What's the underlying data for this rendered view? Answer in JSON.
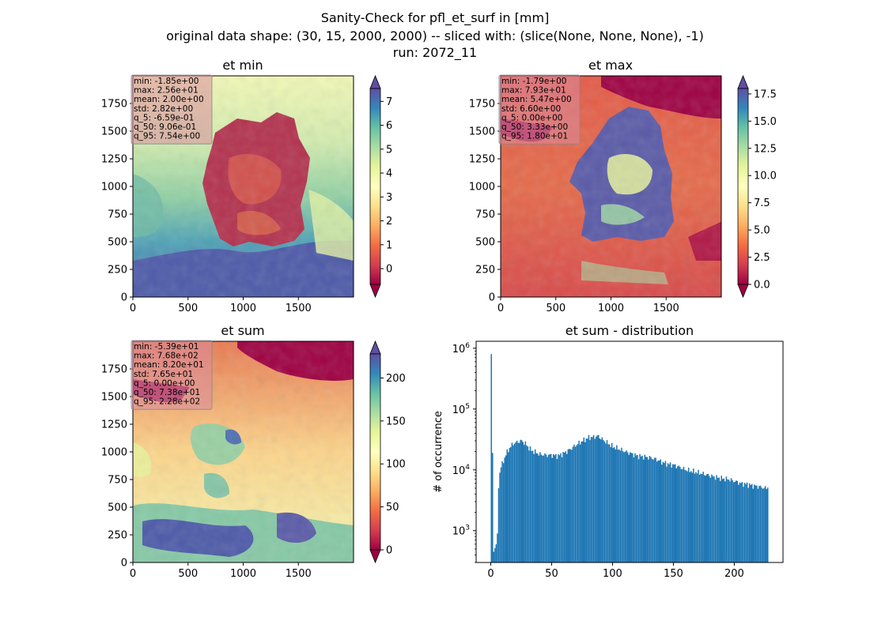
{
  "suptitle": {
    "line1": "Sanity-Check for pfl_et_surf in [mm]",
    "line2": "original data shape: (30, 15, 2000, 2000) -- sliced with: (slice(None, None, None), -1)",
    "line3": "run: 2072_11"
  },
  "panels": {
    "et_min": {
      "title": "et min",
      "stats": [
        "min: -1.85e+00",
        "max: 2.56e+01",
        "mean: 2.00e+00",
        "std: 2.82e+00",
        "q_5: -6.59e-01",
        "q_50: 9.06e-01",
        "q_95: 7.54e+00"
      ],
      "x_ticks": [
        "0",
        "500",
        "1000",
        "1500"
      ],
      "y_ticks": [
        "0",
        "250",
        "500",
        "750",
        "1000",
        "1250",
        "1500",
        "1750"
      ],
      "colorbar": {
        "ticks": [
          "0",
          "1",
          "2",
          "3",
          "4",
          "5",
          "6",
          "7"
        ],
        "tick_values": [
          0,
          1,
          2,
          3,
          4,
          5,
          6,
          7
        ],
        "range": [
          -0.66,
          7.54
        ],
        "extend": "both"
      }
    },
    "et_max": {
      "title": "et max",
      "stats": [
        "min: -1.79e+00",
        "max: 7.93e+01",
        "mean: 5.47e+00",
        "std: 6.60e+00",
        "q_5: 0.00e+00",
        "q_50: 3.33e+00",
        "q_95: 1.80e+01"
      ],
      "x_ticks": [
        "0",
        "500",
        "1000",
        "1500"
      ],
      "y_ticks": [
        "0",
        "250",
        "500",
        "750",
        "1000",
        "1250",
        "1500",
        "1750"
      ],
      "colorbar": {
        "ticks": [
          "0.0",
          "2.5",
          "5.0",
          "7.5",
          "10.0",
          "12.5",
          "15.0",
          "17.5"
        ],
        "tick_values": [
          0,
          2.5,
          5,
          7.5,
          10,
          12.5,
          15,
          17.5
        ],
        "range": [
          0,
          18.0
        ],
        "extend": "both"
      }
    },
    "et_sum": {
      "title": "et sum",
      "stats": [
        "min: -5.39e+01",
        "max: 7.68e+02",
        "mean: 8.20e+01",
        "std: 7.65e+01",
        "q_5: 0.00e+00",
        "q_50: 7.38e+01",
        "q_95: 2.28e+02"
      ],
      "x_ticks": [
        "0",
        "500",
        "1000",
        "1500"
      ],
      "y_ticks": [
        "0",
        "250",
        "500",
        "750",
        "1000",
        "1250",
        "1500",
        "1750"
      ],
      "colorbar": {
        "ticks": [
          "0",
          "50",
          "100",
          "150",
          "200"
        ],
        "tick_values": [
          0,
          50,
          100,
          150,
          200
        ],
        "range": [
          0,
          228
        ],
        "extend": "both"
      }
    },
    "histogram": {
      "title": "et sum - distribution",
      "ylabel": "# of occurrence",
      "x_ticks": [
        "0",
        "50",
        "100",
        "150",
        "200"
      ],
      "y_ticks": [
        {
          "base": "10",
          "exp": "3"
        },
        {
          "base": "10",
          "exp": "4"
        },
        {
          "base": "10",
          "exp": "5"
        },
        {
          "base": "10",
          "exp": "6"
        }
      ]
    }
  },
  "colors": {
    "bar": "#1f77b4",
    "stats_box": "#d98ca0"
  },
  "chart_data": [
    {
      "type": "heatmap",
      "title": "et min",
      "xlim": [
        0,
        2000
      ],
      "ylim": [
        0,
        2000
      ],
      "colormap": "Spectral",
      "clim": [
        -0.66,
        7.54
      ],
      "summary": {
        "min": -1.85,
        "max": 25.6,
        "mean": 2.0,
        "std": 2.82,
        "q_5": -0.659,
        "q_50": 0.906,
        "q_95": 7.54
      }
    },
    {
      "type": "heatmap",
      "title": "et max",
      "xlim": [
        0,
        2000
      ],
      "ylim": [
        0,
        2000
      ],
      "colormap": "Spectral",
      "clim": [
        0,
        18.0
      ],
      "summary": {
        "min": -1.79,
        "max": 79.3,
        "mean": 5.47,
        "std": 6.6,
        "q_5": 0.0,
        "q_50": 3.33,
        "q_95": 18.0
      }
    },
    {
      "type": "heatmap",
      "title": "et sum",
      "xlim": [
        0,
        2000
      ],
      "ylim": [
        0,
        2000
      ],
      "colormap": "Spectral",
      "clim": [
        0,
        228
      ],
      "summary": {
        "min": -53.9,
        "max": 768,
        "mean": 82.0,
        "std": 76.5,
        "q_5": 0.0,
        "q_50": 73.8,
        "q_95": 228
      }
    },
    {
      "type": "bar",
      "title": "et sum - distribution",
      "xlabel": "",
      "ylabel": "# of occurrence",
      "xlim": [
        -12,
        240
      ],
      "ylim": [
        300,
        1300000
      ],
      "yscale": "log",
      "bin_width": 1,
      "x": [
        0,
        2,
        4,
        5,
        6,
        7,
        8,
        10,
        12,
        15,
        18,
        20,
        22,
        25,
        28,
        30,
        33,
        35,
        40,
        45,
        50,
        55,
        60,
        65,
        70,
        75,
        80,
        85,
        88,
        90,
        95,
        100,
        105,
        110,
        115,
        120,
        125,
        130,
        135,
        140,
        145,
        150,
        155,
        160,
        165,
        170,
        175,
        180,
        185,
        190,
        195,
        200,
        205,
        210,
        215,
        220,
        225,
        227
      ],
      "values": [
        800000,
        450,
        600,
        900,
        5000,
        9000,
        11000,
        14000,
        18000,
        23000,
        27000,
        28000,
        29000,
        30000,
        27000,
        24000,
        21000,
        20000,
        18000,
        17500,
        17500,
        17000,
        19000,
        22000,
        26000,
        30000,
        34000,
        35000,
        36000,
        33000,
        28000,
        24000,
        22000,
        20000,
        18500,
        17000,
        16500,
        16000,
        15000,
        13500,
        12500,
        12000,
        11000,
        10000,
        9500,
        9000,
        8500,
        8000,
        7500,
        7200,
        7000,
        6500,
        6000,
        5800,
        5500,
        5300,
        5000,
        5200
      ]
    }
  ]
}
